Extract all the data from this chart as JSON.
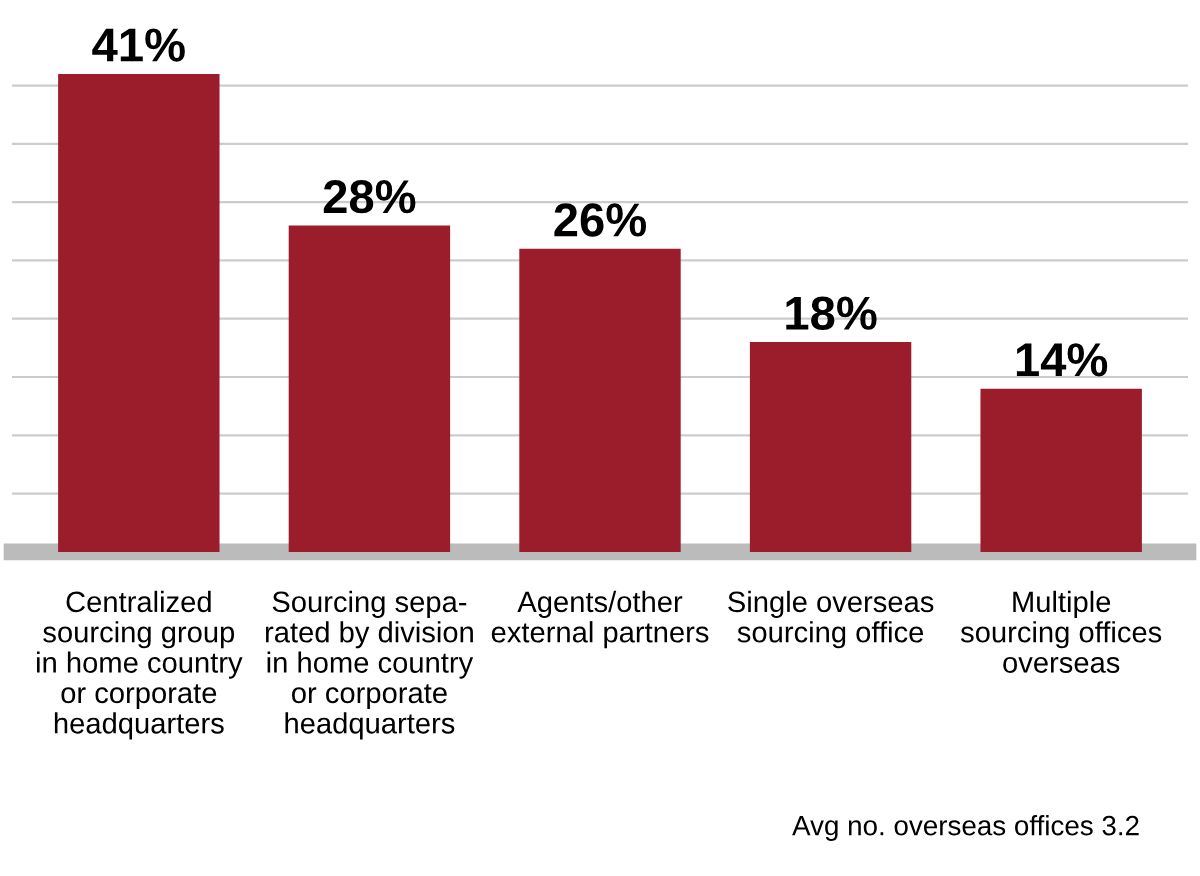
{
  "chart_data": {
    "type": "bar",
    "categories": [
      "Centralized\nsourcing group\nin home country\nor corporate\nheadquarters",
      "Sourcing sepa-\nrated by division\nin home country\nor corporate\nheadquarters",
      "Agents/other\nexternal partners",
      "Single overseas\nsourcing office",
      "Multiple\nsourcing offices\noverseas"
    ],
    "values": [
      41,
      28,
      26,
      18,
      14
    ],
    "value_labels": [
      "41%",
      "28%",
      "26%",
      "18%",
      "14%"
    ],
    "color": "#9b1c2a",
    "yticks": [
      {
        "value": 5,
        "label": null
      },
      {
        "value": 10,
        "label": null
      },
      {
        "value": 15,
        "label": null
      },
      {
        "value": 20,
        "label": null
      },
      {
        "value": 25,
        "label": null
      },
      {
        "value": 30,
        "label": null
      },
      {
        "value": 35,
        "label": null
      },
      {
        "value": 40,
        "label": null
      }
    ],
    "tick_labels": "x",
    "grid": "y",
    "annotations": [
      "Avg no. overseas offices 3.2"
    ]
  }
}
